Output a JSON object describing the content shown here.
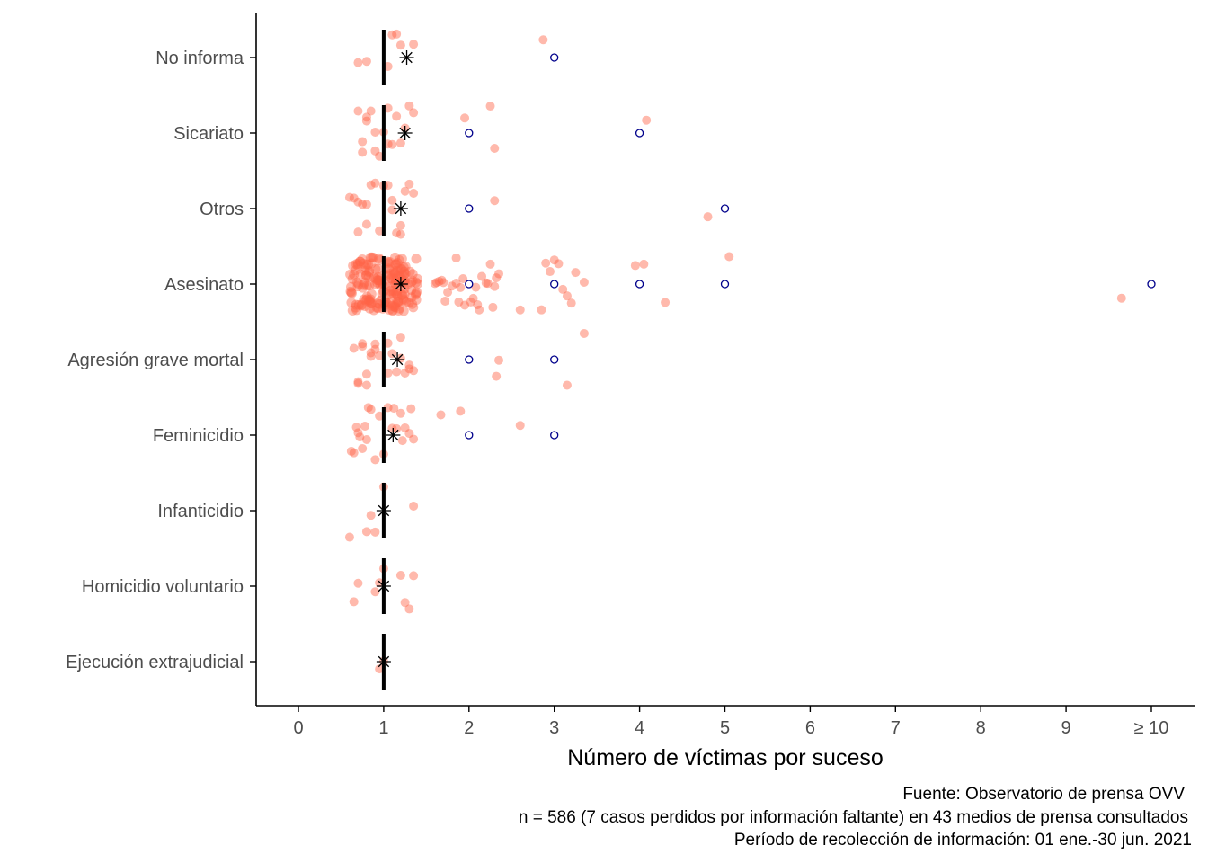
{
  "chart_data": {
    "type": "scatter",
    "subtype": "jittered strip plot with median and mean markers",
    "xlabel": "Número de víctimas por suceso",
    "x_ticks": [
      "0",
      "1",
      "2",
      "3",
      "4",
      "5",
      "6",
      "7",
      "8",
      "9",
      "≥ 10"
    ],
    "xlim": [
      -0.5,
      10.5
    ],
    "categories": [
      "No informa",
      "Sicariato",
      "Otros",
      "Asesinato",
      "Agresión grave mortal",
      "Feminicidio",
      "Infanticidio",
      "Homicidio voluntario",
      "Ejecución extrajudicial"
    ],
    "medians": [
      1,
      1,
      1,
      1,
      1,
      1,
      1,
      1,
      1
    ],
    "means": [
      1.27,
      1.25,
      1.2,
      1.2,
      1.16,
      1.11,
      1.0,
      1.0,
      1.0
    ],
    "distinct_values": [
      [
        3
      ],
      [
        2,
        4
      ],
      [
        2,
        5
      ],
      [
        2,
        3,
        4,
        5,
        10
      ],
      [
        2,
        3
      ],
      [
        2,
        3
      ],
      [],
      [],
      []
    ],
    "points": [
      [
        0.7,
        0.8,
        1.05,
        1.15,
        1.2,
        1.35,
        1.1,
        2.87
      ],
      [
        0.7,
        0.8,
        0.75,
        0.85,
        0.9,
        0.95,
        1.05,
        1.1,
        1.2,
        1.25,
        1.3,
        1.35,
        1.15,
        1.05,
        0.9,
        0.75,
        0.8,
        1.0,
        1.95,
        2.3,
        2.25,
        4.08
      ],
      [
        0.65,
        0.7,
        0.75,
        0.8,
        0.85,
        0.9,
        0.95,
        1.05,
        1.1,
        1.15,
        1.2,
        1.25,
        1.3,
        1.35,
        0.7,
        0.8,
        1.1,
        1.2,
        0.6,
        1.0,
        2.3,
        4.8
      ],
      [
        1.6,
        1.65,
        1.7,
        1.75,
        1.8,
        1.85,
        1.9,
        1.95,
        2.05,
        2.1,
        2.15,
        2.2,
        2.25,
        2.3,
        2.35,
        1.62,
        1.72,
        1.85,
        1.93,
        2.02,
        2.12,
        2.22,
        2.32,
        1.68,
        1.88,
        2.08,
        2.28,
        2.6,
        2.85,
        2.9,
        3.1,
        3.15,
        3.25,
        3.35,
        3.05,
        3.2,
        2.95,
        3.0,
        4.05,
        4.3,
        3.95,
        5.05,
        9.65
      ],
      [
        0.65,
        0.7,
        0.75,
        0.8,
        0.85,
        0.9,
        0.95,
        1.05,
        1.1,
        1.15,
        1.2,
        1.25,
        1.3,
        1.35,
        0.7,
        0.8,
        0.9,
        1.05,
        1.2,
        1.3,
        0.75,
        0.85,
        3.35,
        3.15,
        2.35,
        2.32
      ],
      [
        0.65,
        0.7,
        0.75,
        0.8,
        0.85,
        0.9,
        0.95,
        1.05,
        1.1,
        1.15,
        1.2,
        1.25,
        1.3,
        1.35,
        0.62,
        0.72,
        0.82,
        1.0,
        1.12,
        1.22,
        1.32,
        0.68,
        0.78,
        1.9,
        1.67,
        2.6
      ],
      [
        0.6,
        0.85,
        0.9,
        1.35,
        0.8,
        1.0
      ],
      [
        0.65,
        0.7,
        0.95,
        1.2,
        1.25,
        1.3,
        1.35,
        0.9,
        1.0
      ],
      [
        0.95,
        1.0
      ]
    ],
    "asesinato_cloud_count": 180,
    "grid": false
  },
  "caption": {
    "source": "Fuente: Observatorio de prensa OVV",
    "n": "n = 586 (7 casos perdidos por información faltante) en 43 medios de prensa consultados",
    "period": "Período de recolección de información: 01 ene.-30 jun. 2021"
  },
  "colors": {
    "points": "#ff6347",
    "distinct_marker": "#00008b",
    "median": "#000000",
    "mean": "#000000",
    "axis": "#000000",
    "tick_text": "#4d4d4d"
  }
}
